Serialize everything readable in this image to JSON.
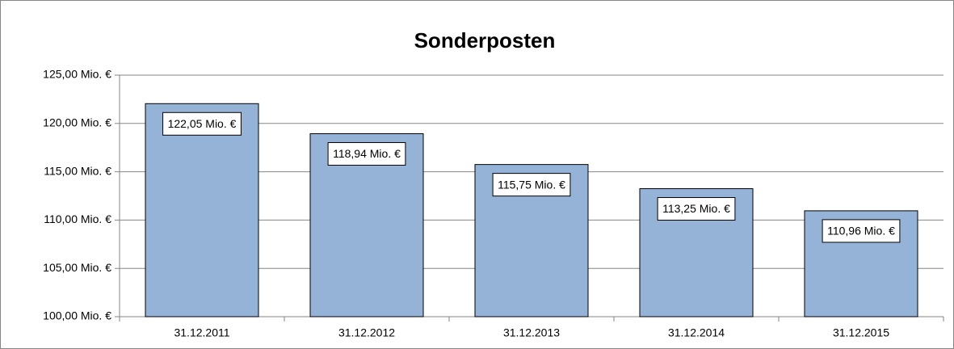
{
  "chart_data": {
    "type": "bar",
    "title": "Sonderposten",
    "categories": [
      "31.12.2011",
      "31.12.2012",
      "31.12.2013",
      "31.12.2014",
      "31.12.2015"
    ],
    "values": [
      122.05,
      118.94,
      115.75,
      113.25,
      110.96
    ],
    "value_labels": [
      "122,05 Mio. €",
      "118,94 Mio. €",
      "115,75 Mio. €",
      "113,25 Mio. €",
      "110,96 Mio. €"
    ],
    "color": "#95b3d7",
    "ylim": [
      100,
      125
    ],
    "yticks": [
      {
        "value": 100,
        "label": "100,00 Mio. €"
      },
      {
        "value": 105,
        "label": "105,00 Mio. €"
      },
      {
        "value": 110,
        "label": "110,00 Mio. €"
      },
      {
        "value": 115,
        "label": "115,00 Mio. €"
      },
      {
        "value": 120,
        "label": "120,00 Mio. €"
      },
      {
        "value": 125,
        "label": "125,00 Mio. €"
      }
    ],
    "grid": true
  }
}
